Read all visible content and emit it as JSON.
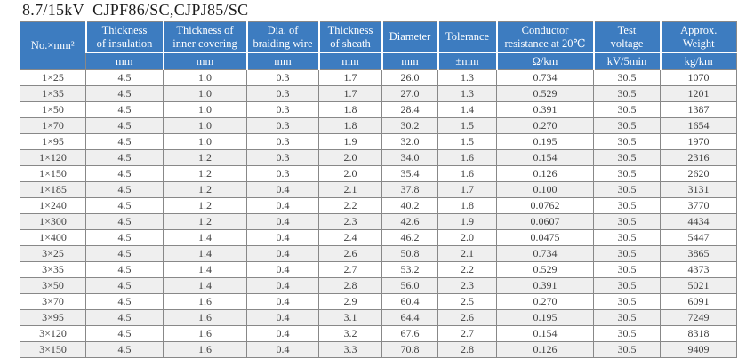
{
  "title": "8.7/15kV  CJPF86/SC,CJPJ85/SC",
  "colors": {
    "header_bg": "#3d7cc0",
    "header_text": "#ffffff",
    "body_text": "#404040",
    "border": "#888888",
    "row_alt": "#efefef",
    "title_text": "#1c1c1c"
  },
  "table": {
    "columns": [
      {
        "key": "spec",
        "label": "No.×mm²",
        "unit": null
      },
      {
        "key": "insulation-thickness",
        "label": "Thickness\nof insulation",
        "unit": "mm"
      },
      {
        "key": "inner-covering",
        "label": "Thickness of\ninner covering",
        "unit": "mm"
      },
      {
        "key": "braiding-wire-dia",
        "label": "Dia. of\nbraiding wire",
        "unit": "mm"
      },
      {
        "key": "sheath-thickness",
        "label": "Thickness\nof sheath",
        "unit": "mm"
      },
      {
        "key": "diameter",
        "label": "Diameter",
        "unit": "mm"
      },
      {
        "key": "tolerance",
        "label": "Tolerance",
        "unit": "±mm"
      },
      {
        "key": "conductor-resistance",
        "label": "Conductor\nresistance at 20℃",
        "unit": "Ω/km"
      },
      {
        "key": "test-voltage",
        "label": "Test\nvoltage",
        "unit": "kV/5min"
      },
      {
        "key": "approx-weight",
        "label": "Approx.\nWeight",
        "unit": "kg/km"
      }
    ],
    "rows": [
      [
        "1×25",
        "4.5",
        "1.0",
        "0.3",
        "1.7",
        "26.0",
        "1.3",
        "0.734",
        "30.5",
        "1070"
      ],
      [
        "1×35",
        "4.5",
        "1.0",
        "0.3",
        "1.7",
        "27.0",
        "1.3",
        "0.529",
        "30.5",
        "1201"
      ],
      [
        "1×50",
        "4.5",
        "1.0",
        "0.3",
        "1.8",
        "28.4",
        "1.4",
        "0.391",
        "30.5",
        "1387"
      ],
      [
        "1×70",
        "4.5",
        "1.0",
        "0.3",
        "1.8",
        "30.2",
        "1.5",
        "0.270",
        "30.5",
        "1654"
      ],
      [
        "1×95",
        "4.5",
        "1.0",
        "0.3",
        "1.9",
        "32.0",
        "1.5",
        "0.195",
        "30.5",
        "1970"
      ],
      [
        "1×120",
        "4.5",
        "1.2",
        "0.3",
        "2.0",
        "34.0",
        "1.6",
        "0.154",
        "30.5",
        "2316"
      ],
      [
        "1×150",
        "4.5",
        "1.2",
        "0.3",
        "2.0",
        "35.4",
        "1.6",
        "0.126",
        "30.5",
        "2620"
      ],
      [
        "1×185",
        "4.5",
        "1.2",
        "0.4",
        "2.1",
        "37.8",
        "1.7",
        "0.100",
        "30.5",
        "3131"
      ],
      [
        "1×240",
        "4.5",
        "1.2",
        "0.4",
        "2.2",
        "40.2",
        "1.8",
        "0.0762",
        "30.5",
        "3770"
      ],
      [
        "1×300",
        "4.5",
        "1.2",
        "0.4",
        "2.3",
        "42.6",
        "1.9",
        "0.0607",
        "30.5",
        "4434"
      ],
      [
        "1×400",
        "4.5",
        "1.4",
        "0.4",
        "2.4",
        "46.2",
        "2.0",
        "0.0475",
        "30.5",
        "5447"
      ],
      [
        "3×25",
        "4.5",
        "1.4",
        "0.4",
        "2.6",
        "50.8",
        "2.1",
        "0.734",
        "30.5",
        "3865"
      ],
      [
        "3×35",
        "4.5",
        "1.4",
        "0.4",
        "2.7",
        "53.2",
        "2.2",
        "0.529",
        "30.5",
        "4373"
      ],
      [
        "3×50",
        "4.5",
        "1.4",
        "0.4",
        "2.8",
        "56.0",
        "2.3",
        "0.391",
        "30.5",
        "5021"
      ],
      [
        "3×70",
        "4.5",
        "1.6",
        "0.4",
        "2.9",
        "60.4",
        "2.5",
        "0.270",
        "30.5",
        "6091"
      ],
      [
        "3×95",
        "4.5",
        "1.6",
        "0.4",
        "3.1",
        "64.4",
        "2.6",
        "0.195",
        "30.5",
        "7249"
      ],
      [
        "3×120",
        "4.5",
        "1.6",
        "0.4",
        "3.2",
        "67.6",
        "2.7",
        "0.154",
        "30.5",
        "8318"
      ],
      [
        "3×150",
        "4.5",
        "1.6",
        "0.4",
        "3.3",
        "70.8",
        "2.8",
        "0.126",
        "30.5",
        "9409"
      ]
    ]
  }
}
